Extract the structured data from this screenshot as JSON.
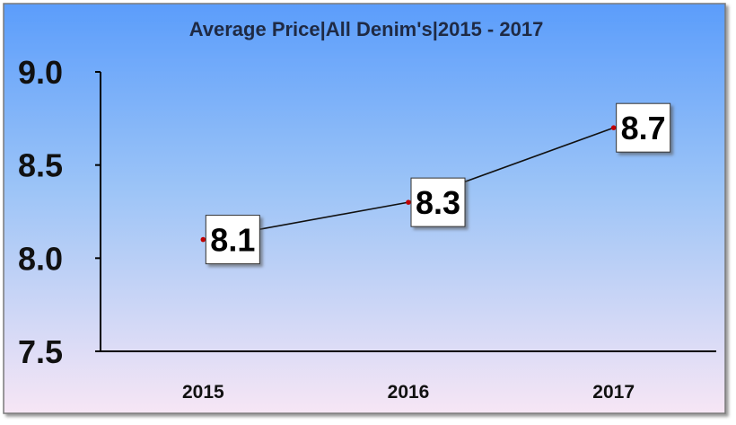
{
  "chart_data": {
    "type": "line",
    "title": "Average Price|All Denim's|2015 - 2017",
    "xlabel": "",
    "ylabel": "",
    "categories": [
      "2015",
      "2016",
      "2017"
    ],
    "series": [
      {
        "values": [
          8.1,
          8.3,
          8.7
        ]
      }
    ],
    "data_labels": [
      "8.1",
      "8.3",
      "8.7"
    ],
    "y_ticks": [
      "9.0",
      "8.5",
      "8.0",
      "7.5"
    ],
    "ylim": [
      7.5,
      9.0
    ],
    "grid": false,
    "legend": "none",
    "colors": {
      "background_top": "#5b9dfb",
      "background_bottom": "#f7e6f5",
      "line": "#111111",
      "marker": "#c00000",
      "label_box": "#ffffff"
    }
  }
}
